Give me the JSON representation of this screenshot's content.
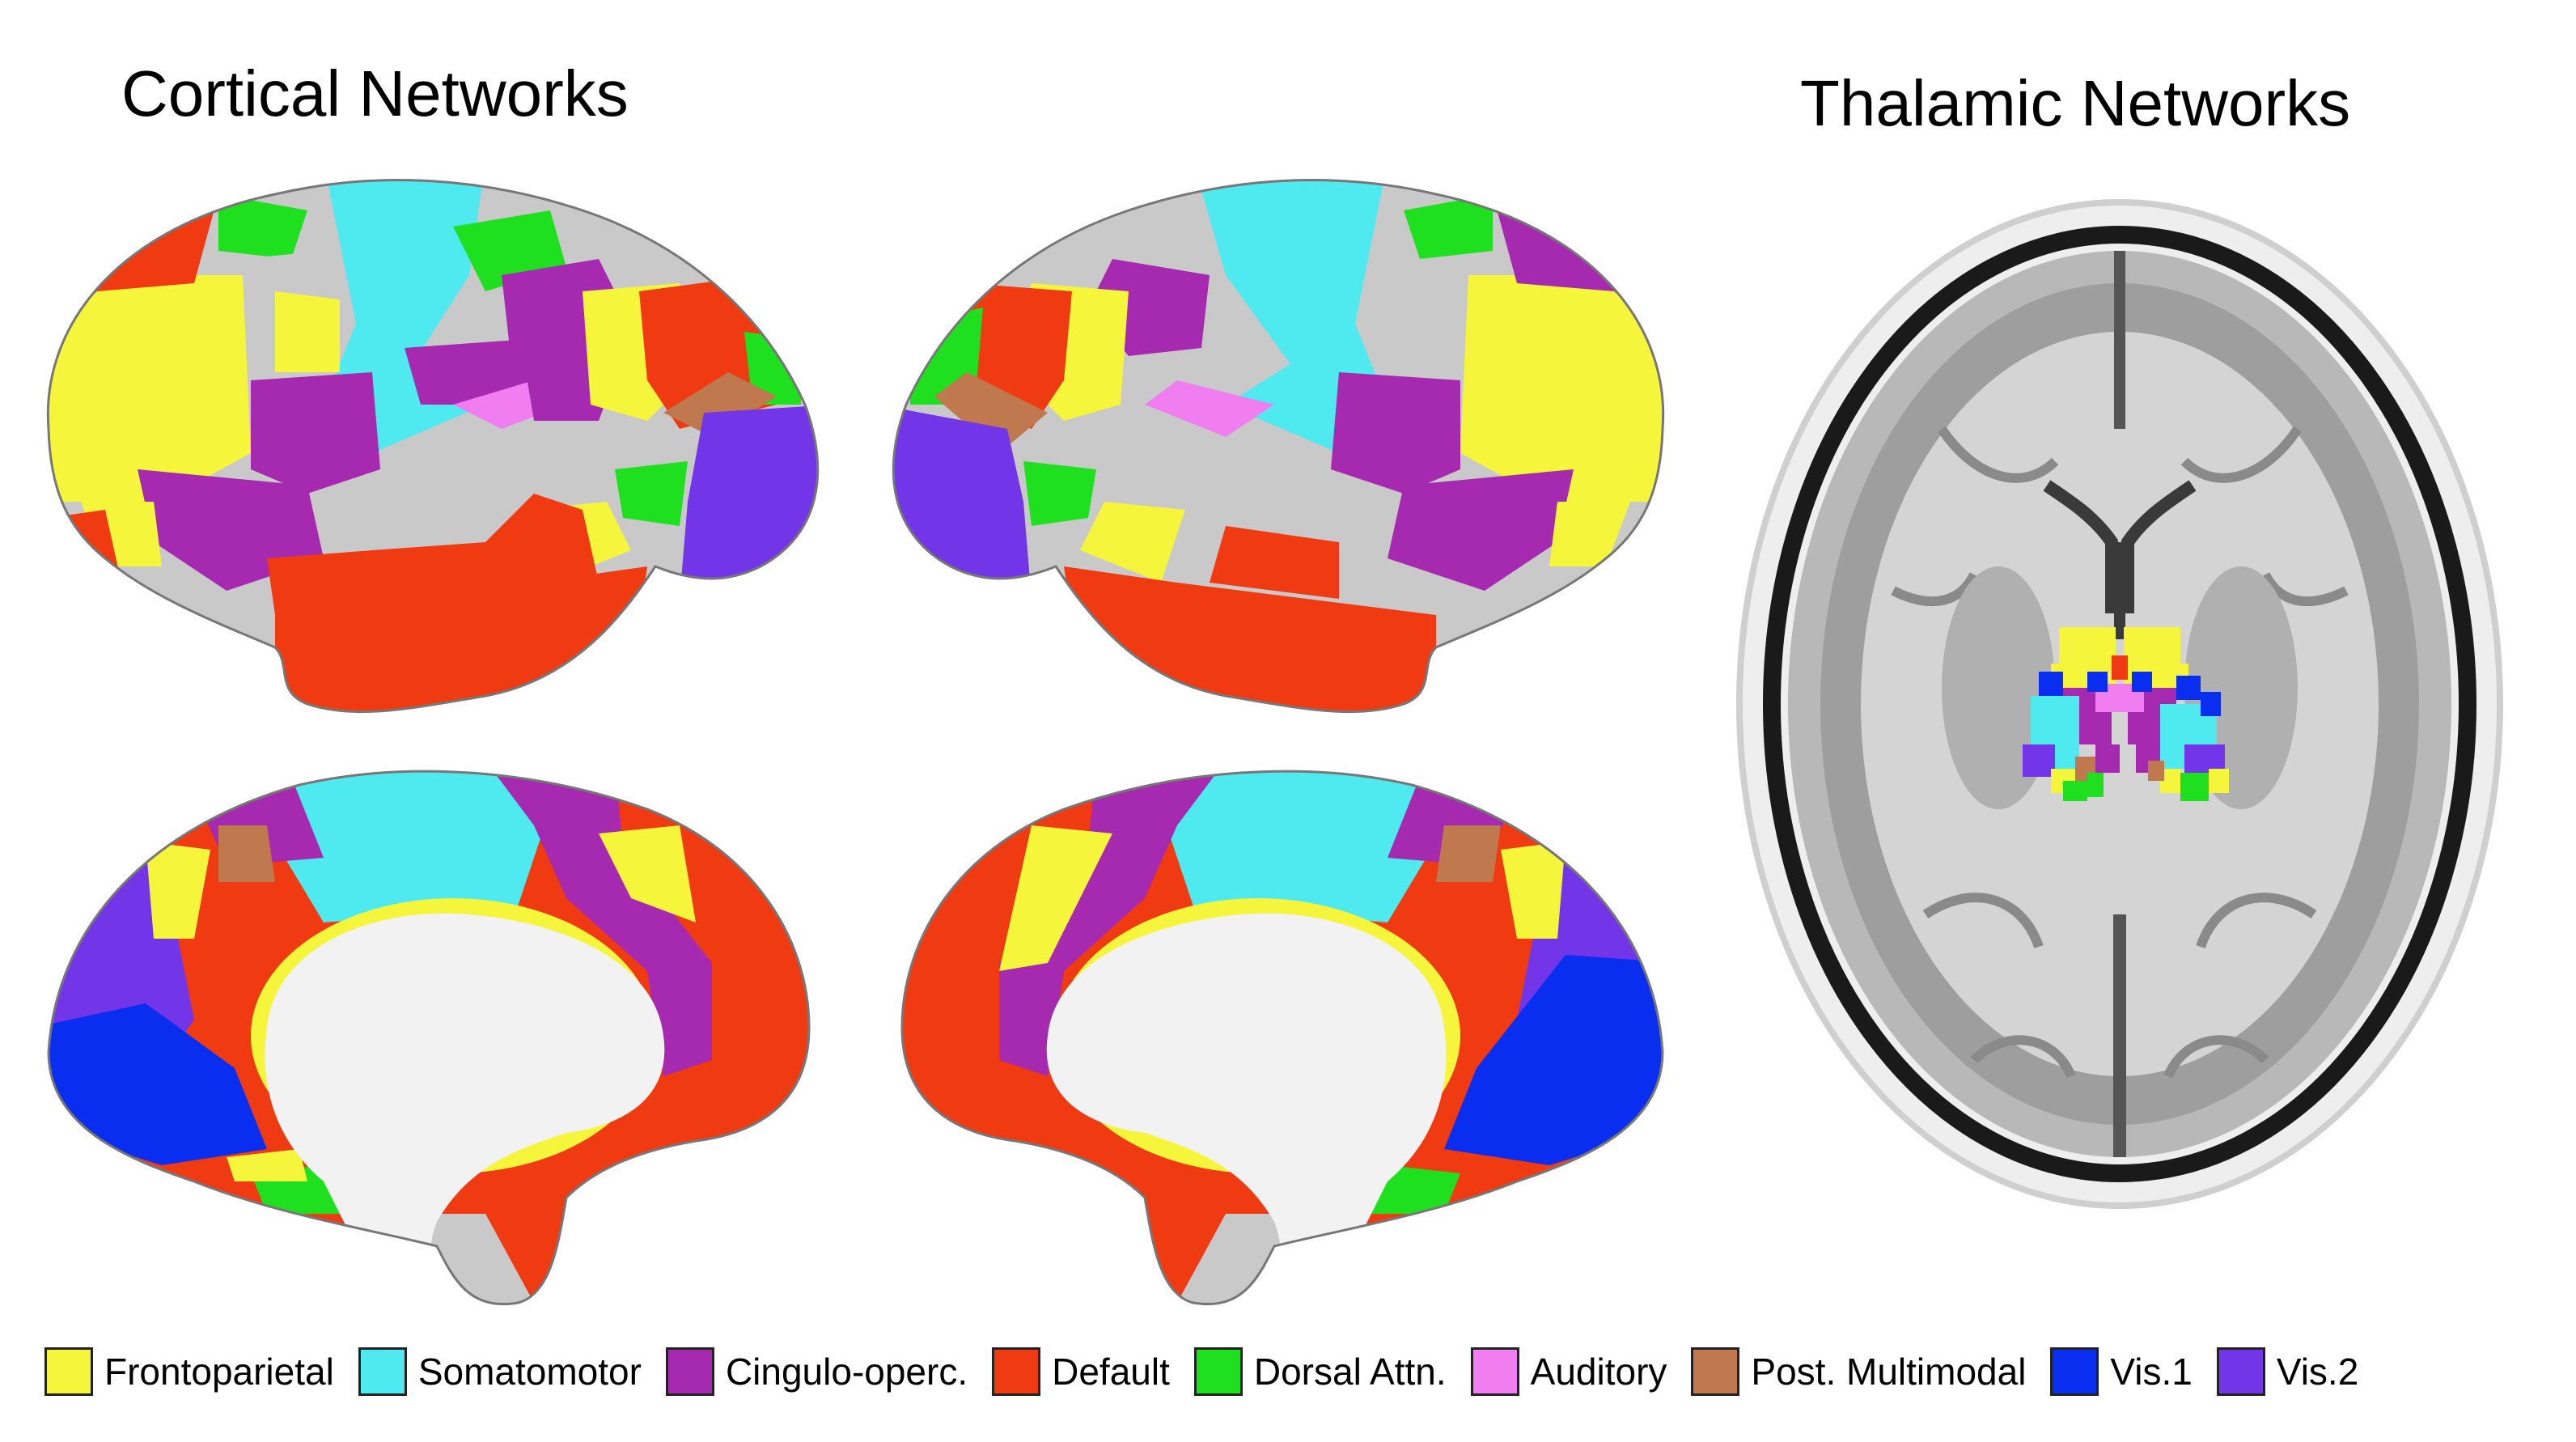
{
  "titles": {
    "cortical": "Cortical Networks",
    "thalamic": "Thalamic Networks"
  },
  "colors": {
    "frontoparietal": "#f5f53c",
    "somatomotor": "#4eeaf0",
    "cingulo_operc": "#a52ab0",
    "default": "#f03a12",
    "dorsal_attn": "#1fe01f",
    "auditory": "#f07ef0",
    "post_multimodal": "#c0784e",
    "vis1": "#0a2ef0",
    "vis2": "#7236e8",
    "unassigned": "#c9c9c9",
    "medial_wall": "#f2f2f2"
  },
  "legend": [
    {
      "label": "Frontoparietal",
      "color": "#f5f53c"
    },
    {
      "label": "Somatomotor",
      "color": "#4eeaf0"
    },
    {
      "label": "Cingulo-operc.",
      "color": "#a52ab0"
    },
    {
      "label": "Default",
      "color": "#f03a12"
    },
    {
      "label": "Dorsal Attn.",
      "color": "#1fe01f"
    },
    {
      "label": "Auditory",
      "color": "#f07ef0"
    },
    {
      "label": "Post. Multimodal",
      "color": "#c0784e"
    },
    {
      "label": "Vis.1",
      "color": "#0a2ef0"
    },
    {
      "label": "Vis.2",
      "color": "#7236e8"
    }
  ]
}
